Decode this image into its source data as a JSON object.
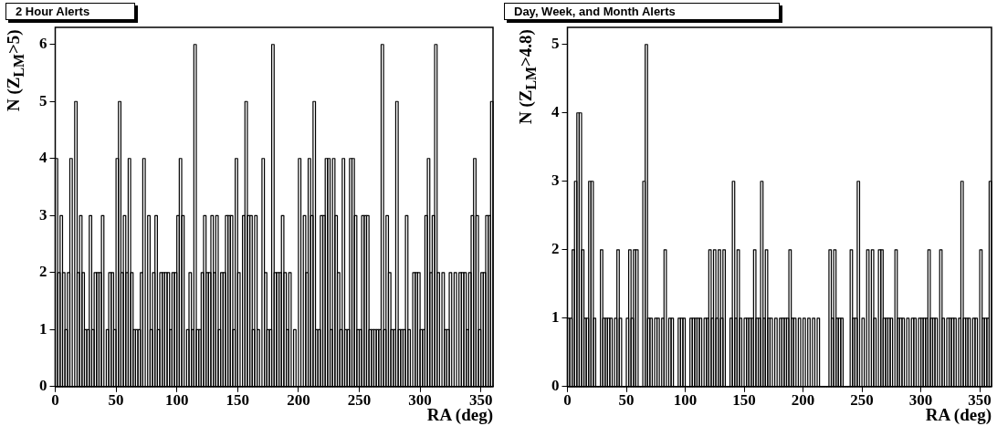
{
  "chart_data": [
    {
      "type": "histogram",
      "title": "2 Hour Alerts",
      "xlabel": "RA (deg)",
      "ylabel": "N (Z$_{LM}$>5)",
      "color": "#000000",
      "bins": [
        0,
        2,
        4,
        6,
        8,
        10,
        12,
        14,
        16,
        18,
        20,
        22,
        24,
        26,
        28,
        30,
        32,
        34,
        36,
        38,
        40,
        42,
        44,
        46,
        48,
        50,
        52,
        54,
        56,
        58,
        60,
        62,
        64,
        66,
        68,
        70,
        72,
        74,
        76,
        78,
        80,
        82,
        84,
        86,
        88,
        90,
        92,
        94,
        96,
        98,
        100,
        102,
        104,
        106,
        108,
        110,
        112,
        114,
        116,
        118,
        120,
        122,
        124,
        126,
        128,
        130,
        132,
        134,
        136,
        138,
        140,
        142,
        144,
        146,
        148,
        150,
        152,
        154,
        156,
        158,
        160,
        162,
        164,
        166,
        168,
        170,
        172,
        174,
        176,
        178,
        180,
        182,
        184,
        186,
        188,
        190,
        192,
        194,
        196,
        198,
        200,
        202,
        204,
        206,
        208,
        210,
        212,
        214,
        216,
        218,
        220,
        222,
        224,
        226,
        228,
        230,
        232,
        234,
        236,
        238,
        240,
        242,
        244,
        246,
        248,
        250,
        252,
        254,
        256,
        258,
        260,
        262,
        264,
        266,
        268,
        270,
        272,
        274,
        276,
        278,
        280,
        282,
        284,
        286,
        288,
        290,
        292,
        294,
        296,
        298,
        300,
        302,
        304,
        306,
        308,
        310,
        312,
        314,
        316,
        318,
        320,
        322,
        324,
        326,
        328,
        330,
        332,
        334,
        336,
        338,
        340,
        342,
        344,
        346,
        348,
        350,
        352,
        354,
        356,
        358,
        360
      ],
      "values": [
        4,
        2,
        3,
        2,
        1,
        2,
        4,
        0,
        5,
        2,
        3,
        2,
        1,
        1,
        3,
        1,
        2,
        2,
        2,
        3,
        0,
        1,
        2,
        2,
        1,
        4,
        5,
        2,
        3,
        2,
        4,
        2,
        1,
        1,
        1,
        2,
        4,
        0,
        3,
        1,
        2,
        3,
        1,
        2,
        2,
        2,
        2,
        1,
        2,
        2,
        3,
        4,
        3,
        0,
        1,
        2,
        1,
        6,
        1,
        1,
        2,
        3,
        2,
        2,
        3,
        2,
        3,
        1,
        2,
        2,
        3,
        3,
        3,
        1,
        4,
        2,
        0,
        3,
        5,
        3,
        3,
        1,
        3,
        1,
        0,
        4,
        2,
        1,
        1,
        6,
        2,
        2,
        2,
        3,
        2,
        1,
        2,
        0,
        1,
        0,
        4,
        0,
        3,
        2,
        4,
        3,
        5,
        1,
        1,
        3,
        3,
        4,
        4,
        1,
        4,
        3,
        2,
        1,
        4,
        1,
        1,
        4,
        4,
        3,
        1,
        1,
        3,
        3,
        3,
        1,
        1,
        1,
        1,
        1,
        6,
        1,
        3,
        2,
        1,
        1,
        5,
        1,
        1,
        1,
        3,
        1,
        0,
        2,
        2,
        2,
        1,
        1,
        3,
        4,
        2,
        3,
        6,
        2,
        0,
        2,
        1,
        1,
        2,
        0,
        2,
        0,
        2,
        2,
        2,
        1,
        2,
        3,
        4,
        3,
        1,
        2,
        2,
        3,
        3,
        5
      ],
      "xlim": [
        0,
        360
      ],
      "xticks": [
        0,
        50,
        100,
        150,
        200,
        250,
        300,
        350
      ],
      "ylim": [
        0,
        6.3
      ],
      "yticks": [
        0,
        1,
        2,
        3,
        4,
        5,
        6
      ]
    },
    {
      "type": "histogram",
      "title": "Day, Week, and Month Alerts",
      "xlabel": "RA (deg)",
      "ylabel": "N (Z$_{LM}$>4.8)",
      "color": "#000000",
      "bins": [
        0,
        2,
        4,
        6,
        8,
        10,
        12,
        14,
        16,
        18,
        20,
        22,
        24,
        26,
        28,
        30,
        32,
        34,
        36,
        38,
        40,
        42,
        44,
        46,
        48,
        50,
        52,
        54,
        56,
        58,
        60,
        62,
        64,
        66,
        68,
        70,
        72,
        74,
        76,
        78,
        80,
        82,
        84,
        86,
        88,
        90,
        92,
        94,
        96,
        98,
        100,
        102,
        104,
        106,
        108,
        110,
        112,
        114,
        116,
        118,
        120,
        122,
        124,
        126,
        128,
        130,
        132,
        134,
        136,
        138,
        140,
        142,
        144,
        146,
        148,
        150,
        152,
        154,
        156,
        158,
        160,
        162,
        164,
        166,
        168,
        170,
        172,
        174,
        176,
        178,
        180,
        182,
        184,
        186,
        188,
        190,
        192,
        194,
        196,
        198,
        200,
        202,
        204,
        206,
        208,
        210,
        212,
        214,
        216,
        218,
        220,
        222,
        224,
        226,
        228,
        230,
        232,
        234,
        236,
        238,
        240,
        242,
        244,
        246,
        248,
        250,
        252,
        254,
        256,
        258,
        260,
        262,
        264,
        266,
        268,
        270,
        272,
        274,
        276,
        278,
        280,
        282,
        284,
        286,
        288,
        290,
        292,
        294,
        296,
        298,
        300,
        302,
        304,
        306,
        308,
        310,
        312,
        314,
        316,
        318,
        320,
        322,
        324,
        326,
        328,
        330,
        332,
        334,
        336,
        338,
        340,
        342,
        344,
        346,
        348,
        350,
        352,
        354,
        356,
        358,
        360
      ],
      "values": [
        1,
        1,
        2,
        3,
        4,
        4,
        2,
        1,
        1,
        3,
        3,
        1,
        0,
        0,
        2,
        1,
        1,
        1,
        1,
        0,
        1,
        2,
        1,
        0,
        0,
        1,
        2,
        1,
        2,
        2,
        0,
        0,
        3,
        5,
        1,
        1,
        0,
        1,
        1,
        0,
        1,
        2,
        0,
        1,
        1,
        0,
        0,
        1,
        1,
        1,
        0,
        0,
        1,
        1,
        1,
        1,
        1,
        0,
        1,
        1,
        2,
        1,
        2,
        1,
        2,
        1,
        2,
        0,
        0,
        1,
        3,
        1,
        2,
        1,
        0,
        1,
        1,
        1,
        1,
        2,
        1,
        1,
        3,
        1,
        2,
        1,
        1,
        0,
        1,
        0,
        1,
        1,
        1,
        1,
        2,
        1,
        1,
        0,
        1,
        0,
        1,
        0,
        1,
        0,
        1,
        0,
        1,
        0,
        0,
        0,
        0,
        2,
        1,
        2,
        1,
        1,
        1,
        0,
        0,
        0,
        2,
        1,
        1,
        3,
        0,
        1,
        0,
        2,
        0,
        2,
        1,
        0,
        2,
        2,
        1,
        1,
        1,
        1,
        0,
        2,
        1,
        1,
        1,
        0,
        1,
        0,
        1,
        1,
        0,
        1,
        1,
        1,
        1,
        2,
        1,
        1,
        1,
        0,
        2,
        1,
        0,
        1,
        1,
        1,
        1,
        0,
        1,
        3,
        1,
        1,
        1,
        0,
        1,
        1,
        0,
        2,
        1,
        1,
        1,
        3
      ],
      "xlim": [
        0,
        360
      ],
      "xticks": [
        0,
        50,
        100,
        150,
        200,
        250,
        300,
        350
      ],
      "ylim": [
        0,
        5.25
      ],
      "yticks": [
        0,
        1,
        2,
        3,
        4,
        5
      ]
    }
  ]
}
